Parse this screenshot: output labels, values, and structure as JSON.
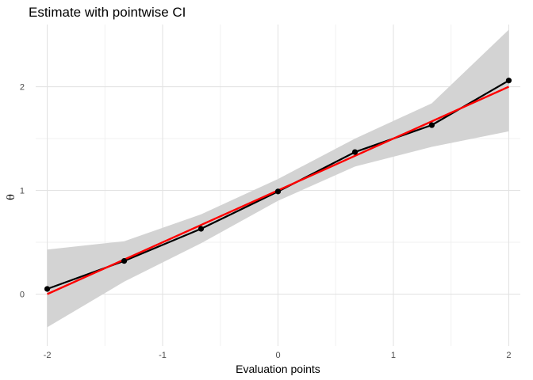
{
  "chart_data": {
    "type": "line",
    "title": "Estimate with pointwise CI",
    "xlabel": "Evaluation points",
    "ylabel": "θ",
    "xlim": [
      -2.1,
      2.1
    ],
    "ylim": [
      -0.5,
      2.6
    ],
    "x_ticks": [
      -2,
      -1,
      0,
      1,
      2
    ],
    "x_tick_labels": [
      "-2",
      "-1",
      "0",
      "1",
      "2"
    ],
    "y_ticks": [
      0,
      1,
      2
    ],
    "y_tick_labels": [
      "0",
      "1",
      "2"
    ],
    "grid": true,
    "legend": "none",
    "x": [
      -2,
      -1.333,
      -0.667,
      0,
      0.667,
      1.333,
      2
    ],
    "series": [
      {
        "kind": "estimate",
        "color": "#000000",
        "markers": true,
        "values": [
          0.05,
          0.32,
          0.63,
          0.99,
          1.37,
          1.63,
          2.06
        ]
      },
      {
        "kind": "truth",
        "color": "#ff0000",
        "markers": false,
        "x": [
          -2,
          2
        ],
        "values": [
          0,
          2
        ]
      }
    ],
    "ci": {
      "color": "#d3d3d3",
      "lower": [
        -0.32,
        0.12,
        0.49,
        0.9,
        1.23,
        1.42,
        1.57
      ],
      "upper": [
        0.43,
        0.51,
        0.77,
        1.11,
        1.5,
        1.84,
        2.55
      ]
    }
  }
}
